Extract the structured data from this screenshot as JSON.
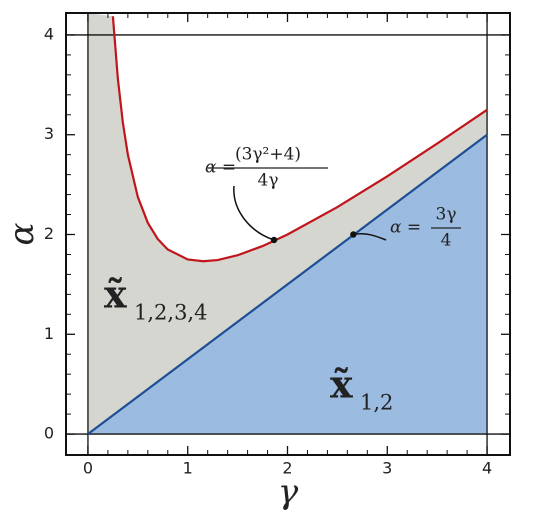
{
  "chart_data": {
    "type": "region",
    "xlabel": "γ",
    "ylabel": "α",
    "xlim": [
      -0.22,
      4.23
    ],
    "ylim": [
      -0.21,
      4.22
    ],
    "xticks": [
      0,
      1,
      2,
      3,
      4
    ],
    "yticks": [
      0,
      1,
      2,
      3,
      4
    ],
    "series": [
      {
        "name": "α = (3γ²+4)/(4γ)",
        "color": "#c0151b",
        "x": [
          0.25,
          0.3,
          0.35,
          0.4,
          0.5,
          0.6,
          0.7,
          0.8,
          1.0,
          1.155,
          1.3,
          1.5,
          1.75,
          2.0,
          2.5,
          3.0,
          3.5,
          4.0
        ],
        "values": [
          4.1875,
          3.558,
          3.12,
          2.8,
          2.375,
          2.117,
          1.954,
          1.85,
          1.75,
          1.732,
          1.744,
          1.792,
          1.884,
          2.0,
          2.275,
          2.583,
          2.911,
          3.25
        ]
      },
      {
        "name": "α = 3γ/4",
        "color": "#1f4e96",
        "x": [
          0,
          4
        ],
        "values": [
          0,
          3
        ]
      }
    ],
    "regions": [
      {
        "label": "x̃",
        "subscript": "1,2,3,4",
        "color": "#d6d6d0"
      },
      {
        "label": "x̃",
        "subscript": "1,2",
        "color": "#9bbbe0"
      }
    ],
    "annotations": [
      {
        "lhs": "α =",
        "numerator": "(3γ²+4)",
        "denominator": "4γ",
        "point": [
          1.865,
          1.945
        ]
      },
      {
        "lhs": "α =",
        "numerator": "3γ",
        "denominator": "4",
        "point": [
          2.66,
          2.0
        ]
      }
    ]
  }
}
